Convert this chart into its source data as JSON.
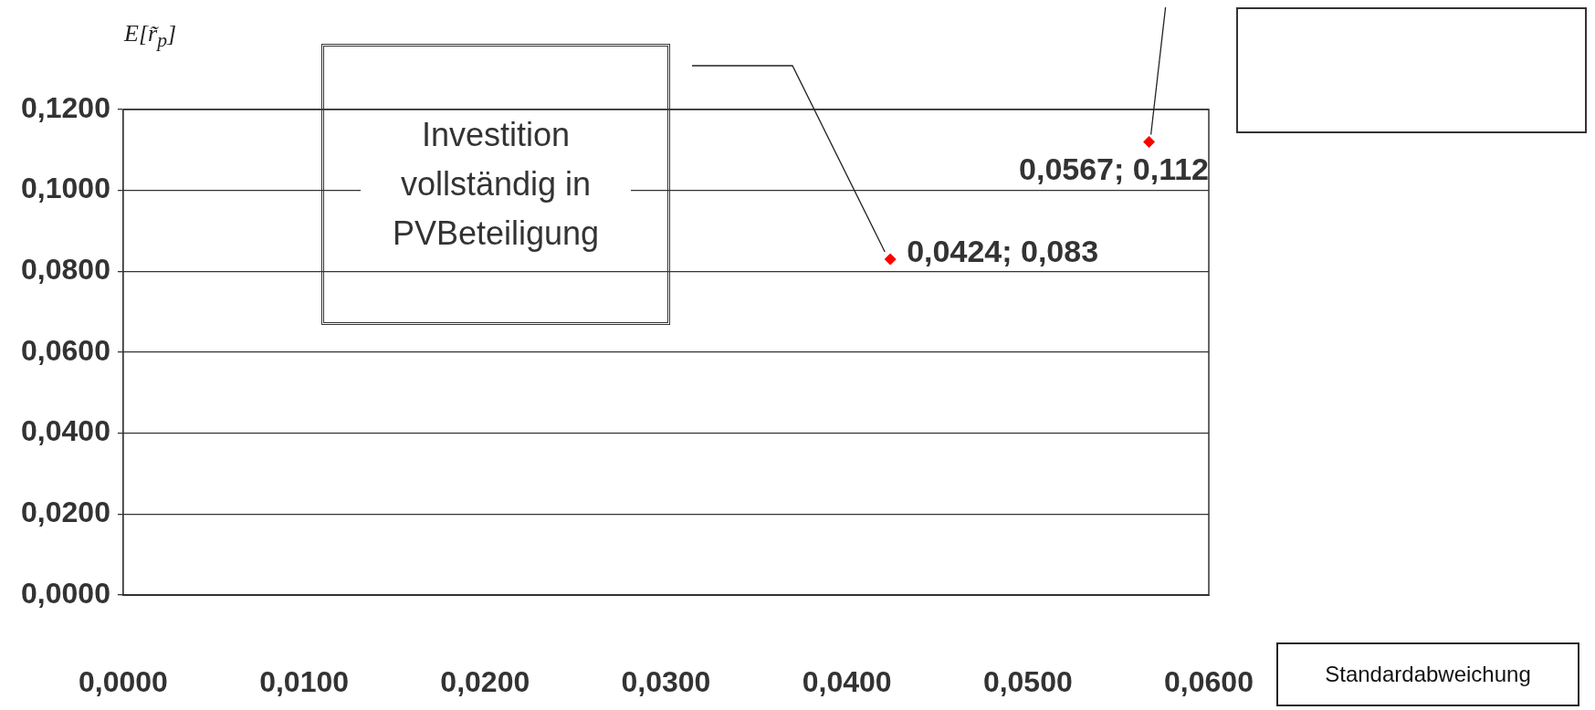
{
  "chart_data": {
    "type": "scatter",
    "ylabel": "E[r̃$_{p}$]",
    "xlabel": "Standardabweichung",
    "series": [
      {
        "color": "#ff0000",
        "x": [
          0.0424,
          0.0567
        ],
        "values": [
          0.083,
          0.112
        ],
        "value_labels": [
          "0,0424; 0,083",
          "0,0567; 0,112"
        ]
      }
    ],
    "xlim": [
      0,
      0.06
    ],
    "xticks": [
      {
        "value": 0,
        "label": "0,0000"
      },
      {
        "value": 0.01,
        "label": "0,0100"
      },
      {
        "value": 0.02,
        "label": "0,0200"
      },
      {
        "value": 0.03,
        "label": "0,0300"
      },
      {
        "value": 0.04,
        "label": "0,0400"
      },
      {
        "value": 0.05,
        "label": "0,0500"
      },
      {
        "value": 0.06,
        "label": "0,0600"
      }
    ],
    "ylim": [
      0,
      0.12
    ],
    "yticks": [
      {
        "value": 0,
        "label": "0,0000"
      },
      {
        "value": 0.02,
        "label": "0,0200"
      },
      {
        "value": 0.04,
        "label": "0,0400"
      },
      {
        "value": 0.06,
        "label": "0,0600"
      },
      {
        "value": 0.08,
        "label": "0,0800"
      },
      {
        "value": 0.1,
        "label": "0,1000"
      },
      {
        "value": 0.12,
        "label": "0,1200"
      }
    ],
    "grid": "y",
    "marker": "diamond",
    "annotations": [
      "Investition vollständig in PVBeteiligung"
    ]
  }
}
